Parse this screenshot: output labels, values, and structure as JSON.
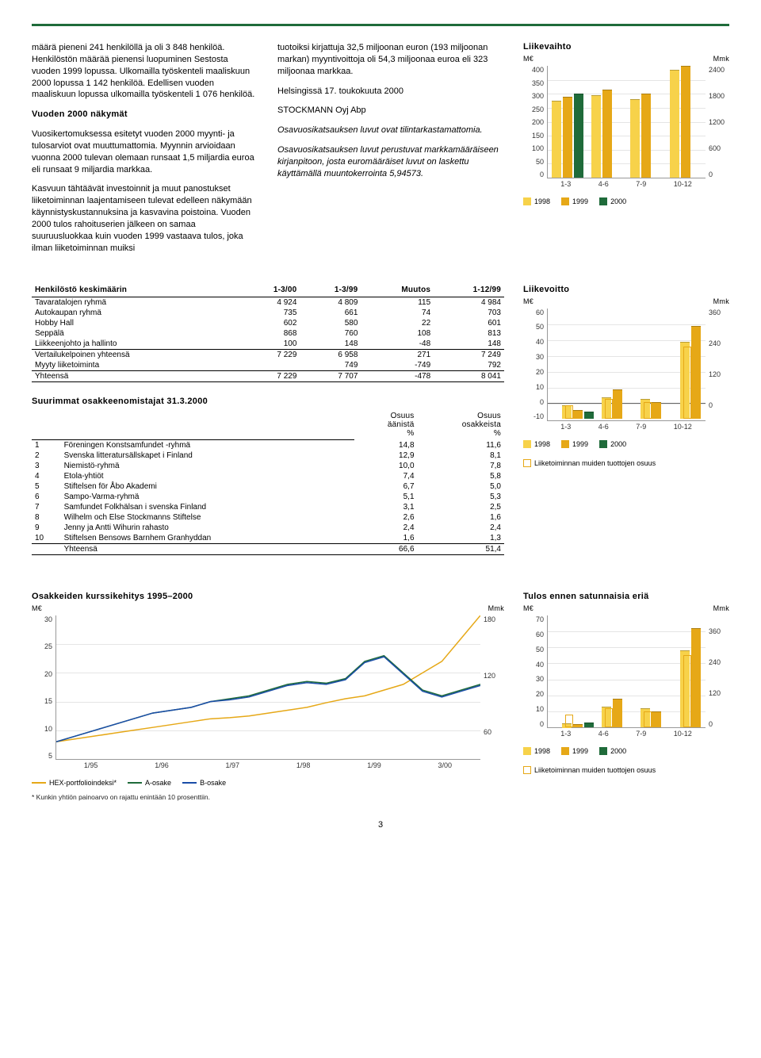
{
  "colors": {
    "c1998": "#f7d24a",
    "c1999": "#e6a817",
    "c2000": "#1f6b3a",
    "grid": "#e5e5e5",
    "green_line": "#1f6b3a",
    "orange_line": "#e6a817",
    "blue_line": "#1a4da8"
  },
  "text_col1": {
    "p1": "määrä pieneni 241 henkilöllä ja oli 3 848 henkilöä. Henkilöstön määrää pienensi luopuminen Sestosta vuoden 1999 lopussa. Ulkomailla työskenteli maaliskuun 2000 lopussa 1 142 henkilöä. Edellisen vuoden maaliskuun lopussa ulkomailla työskenteli 1 076 henkilöä.",
    "h1": "Vuoden 2000 näkymät",
    "p2": "Vuosikertomuksessa esitetyt vuoden 2000 myynti- ja tulosarviot ovat muuttumattomia. Myynnin arvioidaan vuonna 2000 tulevan olemaan runsaat 1,5 miljardia euroa eli runsaat 9 miljardia markkaa.",
    "p3": "Kasvuun tähtäävät investoinnit ja muut panostukset liiketoiminnan laajentamiseen tulevat edelleen näkymään käynnistyskustannuksina ja kasvavina poistoina. Vuoden 2000 tulos rahoituserien jälkeen on samaa suuruusluokkaa kuin vuoden 1999 vastaava tulos, joka ilman liiketoiminnan muiksi"
  },
  "text_col2": {
    "p1": "tuotoiksi kirjattuja 32,5 miljoonan euron (193 miljoonan markan) myyntivoittoja oli 54,3 miljoonaa euroa eli 323 miljoonaa markkaa.",
    "p2": "Helsingissä 17. toukokuuta 2000",
    "p3": "STOCKMANN Oyj Abp",
    "p4": "Osavuosikatsauksen luvut ovat tilintarkastamattomia.",
    "p5": "Osavuosikatsauksen luvut perustuvat markkamääräiseen kirjanpitoon, josta euromääräiset luvut on laskettu käyttämällä muuntokerrointa 5,94573."
  },
  "chart1": {
    "title_left": "Liikevaihto",
    "unit_left": "M€",
    "unit_right": "Mmk",
    "yticks_left": [
      "400",
      "350",
      "300",
      "250",
      "200",
      "150",
      "100",
      "50",
      "0"
    ],
    "yticks_right": [
      "2400",
      "",
      "1800",
      "",
      "1200",
      "",
      "600",
      "",
      "0"
    ],
    "ymax": 400,
    "categories": [
      "1-3",
      "4-6",
      "7-9",
      "10-12"
    ],
    "series": {
      "1998": [
        275,
        295,
        280,
        385
      ],
      "1999": [
        290,
        315,
        300,
        400
      ],
      "2000": [
        300,
        null,
        null,
        null
      ]
    },
    "legend": [
      "1998",
      "1999",
      "2000"
    ]
  },
  "table_pers": {
    "title": "Henkilöstö keskimäärin",
    "headers": [
      "",
      "1-3/00",
      "1-3/99",
      "Muutos",
      "1-12/99"
    ],
    "rows": [
      [
        "Tavaratalojen ryhmä",
        "4 924",
        "4 809",
        "115",
        "4 984"
      ],
      [
        "Autokaupan ryhmä",
        "735",
        "661",
        "74",
        "703"
      ],
      [
        "Hobby Hall",
        "602",
        "580",
        "22",
        "601"
      ],
      [
        "Seppälä",
        "868",
        "760",
        "108",
        "813"
      ],
      [
        "Liikkeenjohto ja hallinto",
        "100",
        "148",
        "-48",
        "148"
      ],
      [
        "Vertailukelpoinen yhteensä",
        "7 229",
        "6 958",
        "271",
        "7 249"
      ],
      [
        "Myyty liiketoiminta",
        "",
        "749",
        "-749",
        "792"
      ],
      [
        "Yhteensä",
        "7 229",
        "7 707",
        "-478",
        "8 041"
      ]
    ]
  },
  "table_share": {
    "title": "Suurimmat osakkeenomistajat 31.3.2000",
    "subheads": [
      "Osuus äänistä %",
      "Osuus osakkeista %"
    ],
    "rows": [
      [
        "1",
        "Föreningen Konstsamfundet -ryhmä",
        "14,8",
        "11,6"
      ],
      [
        "2",
        "Svenska litteratursällskapet i Finland",
        "12,9",
        "8,1"
      ],
      [
        "3",
        "Niemistö-ryhmä",
        "10,0",
        "7,8"
      ],
      [
        "4",
        "Etola-yhtiöt",
        "7,4",
        "5,8"
      ],
      [
        "5",
        "Stiftelsen för Åbo Akademi",
        "6,7",
        "5,0"
      ],
      [
        "6",
        "Sampo-Varma-ryhmä",
        "5,1",
        "5,3"
      ],
      [
        "7",
        "Samfundet Folkhälsan i svenska Finland",
        "3,1",
        "2,5"
      ],
      [
        "8",
        "Wilhelm och Else Stockmanns Stiftelse",
        "2,6",
        "1,6"
      ],
      [
        "9",
        "Jenny ja Antti Wihurin rahasto",
        "2,4",
        "2,4"
      ],
      [
        "10",
        "Stiftelsen Bensows Barnhem Granhyddan",
        "1,6",
        "1,3"
      ],
      [
        "",
        "Yhteensä",
        "66,6",
        "51,4"
      ]
    ]
  },
  "chart2": {
    "title_left": "Liikevoitto",
    "unit_left": "M€",
    "unit_right": "Mmk",
    "yticks_left": [
      "60",
      "50",
      "40",
      "30",
      "20",
      "10",
      "0",
      "-10"
    ],
    "yticks_right": [
      "360",
      "",
      "240",
      "",
      "120",
      "",
      "0",
      ""
    ],
    "ymin": -10,
    "ymax": 60,
    "categories": [
      "1-3",
      "4-6",
      "7-9",
      "10-12"
    ],
    "series_outline": [
      8,
      12,
      10,
      45
    ],
    "series": {
      "1998": [
        8,
        13,
        12,
        48
      ],
      "1999": [
        5,
        18,
        10,
        58
      ],
      "2000": [
        4,
        null,
        null,
        null
      ]
    },
    "legend": [
      "1998",
      "1999",
      "2000"
    ],
    "legend_extra": "Liiketoiminnan muiden tuottojen osuus"
  },
  "chart3": {
    "title": "Osakkeiden kurssikehitys 1995–2000",
    "unit_left": "M€",
    "unit_right": "Mmk",
    "yticks_left": [
      "30",
      "25",
      "20",
      "15",
      "10",
      "5"
    ],
    "yticks_right": [
      "180",
      "",
      "120",
      "",
      "60",
      ""
    ],
    "xlabels": [
      "1/95",
      "1/96",
      "1/97",
      "1/98",
      "1/99",
      "3/00"
    ],
    "legend": [
      "HEX-portfolioindeksi*",
      "A-osake",
      "B-osake"
    ],
    "footnote": "* Kunkin yhtiön painoarvo on rajattu enintään 10 prosenttiin.",
    "hex": [
      8,
      8.5,
      9,
      9.5,
      10,
      10.5,
      11,
      11.5,
      12,
      12.2,
      12.5,
      13,
      13.5,
      14,
      14.8,
      15.5,
      16,
      17,
      18,
      20,
      22,
      26,
      30
    ],
    "a": [
      8,
      9,
      10,
      11,
      12,
      13,
      13.5,
      14,
      15,
      15.5,
      16,
      17,
      18,
      18.5,
      18.2,
      19,
      22,
      23,
      20,
      17,
      16,
      17,
      18
    ],
    "b": [
      8,
      9,
      10,
      11,
      12,
      13,
      13.5,
      14,
      15,
      15.3,
      15.8,
      16.8,
      17.8,
      18.3,
      18,
      18.8,
      21.8,
      22.8,
      19.8,
      16.8,
      15.8,
      16.8,
      17.8
    ]
  },
  "chart4": {
    "title": "Tulos ennen satunnaisia eriä",
    "unit_left": "M€",
    "unit_right": "Mmk",
    "yticks_left": [
      "70",
      "60",
      "50",
      "40",
      "30",
      "20",
      "10",
      "0"
    ],
    "yticks_right": [
      "",
      "360",
      "",
      "240",
      "",
      "120",
      "",
      "0"
    ],
    "ymax": 70,
    "categories": [
      "1-3",
      "4-6",
      "7-9",
      "10-12"
    ],
    "series_outline": [
      8,
      12,
      10,
      45
    ],
    "series": {
      "1998": [
        -3,
        13,
        12,
        48
      ],
      "1999": [
        2,
        18,
        10,
        62
      ],
      "2000": [
        3,
        null,
        null,
        null
      ]
    },
    "legend": [
      "1998",
      "1999",
      "2000"
    ],
    "legend_extra": "Liiketoiminnan muiden tuottojen osuus"
  },
  "page_num": "3"
}
